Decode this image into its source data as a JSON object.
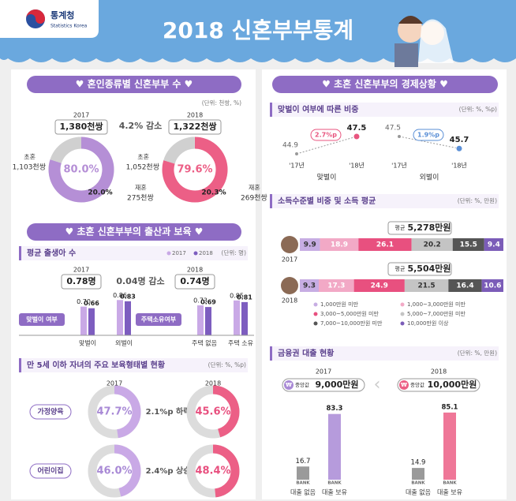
{
  "header": {
    "logo": "통계청",
    "logo_sub": "Statistics Korea",
    "title": "2018 신혼부부통계"
  },
  "marriage": {
    "title": "♥ 혼인종류별 신혼부부 수 ♥",
    "unit": "(단위: 천쌍, %)",
    "change": "4.2% 감소",
    "first_label": "초혼",
    "remarry_label": "재혼",
    "years": [
      {
        "year": "2017",
        "total": "1,380천쌍",
        "first": "1,103천쌍",
        "remarry": "275천쌍",
        "first_pct": {
          "value": 80.0,
          "label": "80.0%"
        },
        "remarry_pct": {
          "value": 20.0,
          "label": "20.0%"
        },
        "color": "#b58fd6"
      },
      {
        "year": "2018",
        "total": "1,322천쌍",
        "first": "1,052천쌍",
        "remarry": "269천쌍",
        "first_pct": {
          "value": 79.6,
          "label": "79.6%"
        },
        "remarry_pct": {
          "value": 20.3,
          "label": "20.3%"
        },
        "color": "#ec5f86"
      }
    ]
  },
  "birth": {
    "title": "♥ 초혼 신혼부부의 출산과 보육 ♥",
    "subtitle": "평균 출생아 수",
    "unit": "(단위: 명)",
    "legend": [
      {
        "name": "2017",
        "color": "#c9a9e6"
      },
      {
        "name": "2018",
        "color": "#7d5dbf"
      }
    ],
    "totals": [
      {
        "year": "2017",
        "value": "0.78명"
      },
      {
        "year": "2018",
        "value": "0.74명"
      }
    ],
    "change": "0.04명 감소",
    "groups": [
      {
        "name": "맞벌이 여부",
        "categories": [
          "맞벌이",
          "외벌이"
        ],
        "values": [
          [
            {
              "value": 0.7,
              "label": "0.70"
            },
            {
              "value": 0.66,
              "label": "0.66"
            }
          ],
          [
            {
              "value": 0.86,
              "label": "0.86"
            },
            {
              "value": 0.83,
              "label": "0.83"
            }
          ]
        ]
      },
      {
        "name": "주택소유여부",
        "categories": [
          "주택 없음",
          "주택 소유"
        ],
        "values": [
          [
            {
              "value": 0.73,
              "label": "0.73"
            },
            {
              "value": 0.69,
              "label": "0.69"
            }
          ],
          [
            {
              "value": 0.85,
              "label": "0.85"
            },
            {
              "value": 0.81,
              "label": "0.81"
            }
          ]
        ]
      }
    ]
  },
  "childcare": {
    "subtitle": "만 5세 이하 자녀의 주요 보육형태별 현황",
    "unit": "(단위: %, %p)",
    "years": [
      "2017",
      "2018"
    ],
    "rows": [
      {
        "name": "가정양육",
        "values": [
          {
            "value": 47.7,
            "label": "47.7%"
          },
          {
            "value": 45.6,
            "label": "45.6%"
          }
        ],
        "change": "2.1%p 하락"
      },
      {
        "name": "어린이집",
        "values": [
          {
            "value": 46.0,
            "label": "46.0%"
          },
          {
            "value": 48.4,
            "label": "48.4%"
          }
        ],
        "change": "2.4%p 상승"
      }
    ]
  },
  "economy": {
    "title": "♥ 초혼 신혼부부의 경제상황 ♥"
  },
  "dual": {
    "subtitle": "맞벌이 여부에 따른 비중",
    "unit": "(단위: %, %p)",
    "x": [
      "'17년",
      "'18년"
    ],
    "series": [
      {
        "name": "맞벌이",
        "values": [
          44.9,
          47.5
        ],
        "change": "2.7%p",
        "color": "#e8557f"
      },
      {
        "name": "외벌이",
        "values": [
          47.5,
          45.7
        ],
        "change": "1.9%p",
        "color": "#5a8fd6"
      }
    ]
  },
  "income": {
    "subtitle": "소득수준별 비중 및 소득 평균",
    "unit": "(단위: %, 만원)",
    "avg_label": "평균",
    "categories": [
      "1,000만원 미만",
      "1,000~3,000만원 미만",
      "3,000~5,000만원 미만",
      "5,000~7,000만원 미만",
      "7,000~10,000만원 미만",
      "10,000만원 이상"
    ],
    "colors": [
      "#c7ade3",
      "#f2a9c6",
      "#e8507f",
      "#c4c4c4",
      "#555555",
      "#7b5cb8"
    ],
    "years": [
      {
        "year": "2017",
        "avg": "5,278만원",
        "values": [
          9.9,
          18.9,
          26.1,
          20.2,
          15.5,
          9.4
        ]
      },
      {
        "year": "2018",
        "avg": "5,504만원",
        "values": [
          9.3,
          17.3,
          24.9,
          21.5,
          16.4,
          10.6
        ]
      }
    ]
  },
  "loans": {
    "subtitle": "금융권 대출 현황",
    "unit": "(단위: %, 만원)",
    "currency": "₩",
    "median_label": "중앙값",
    "bank": "BANK",
    "categories": [
      "대출 없음",
      "대출 보유"
    ],
    "years": [
      {
        "year": "2017",
        "median": "9,000만원",
        "values": [
          16.7,
          83.3
        ],
        "color": "#a98ad6"
      },
      {
        "year": "2018",
        "median": "10,000만원",
        "values": [
          14.9,
          85.1
        ],
        "color": "#ec5f86"
      }
    ]
  }
}
